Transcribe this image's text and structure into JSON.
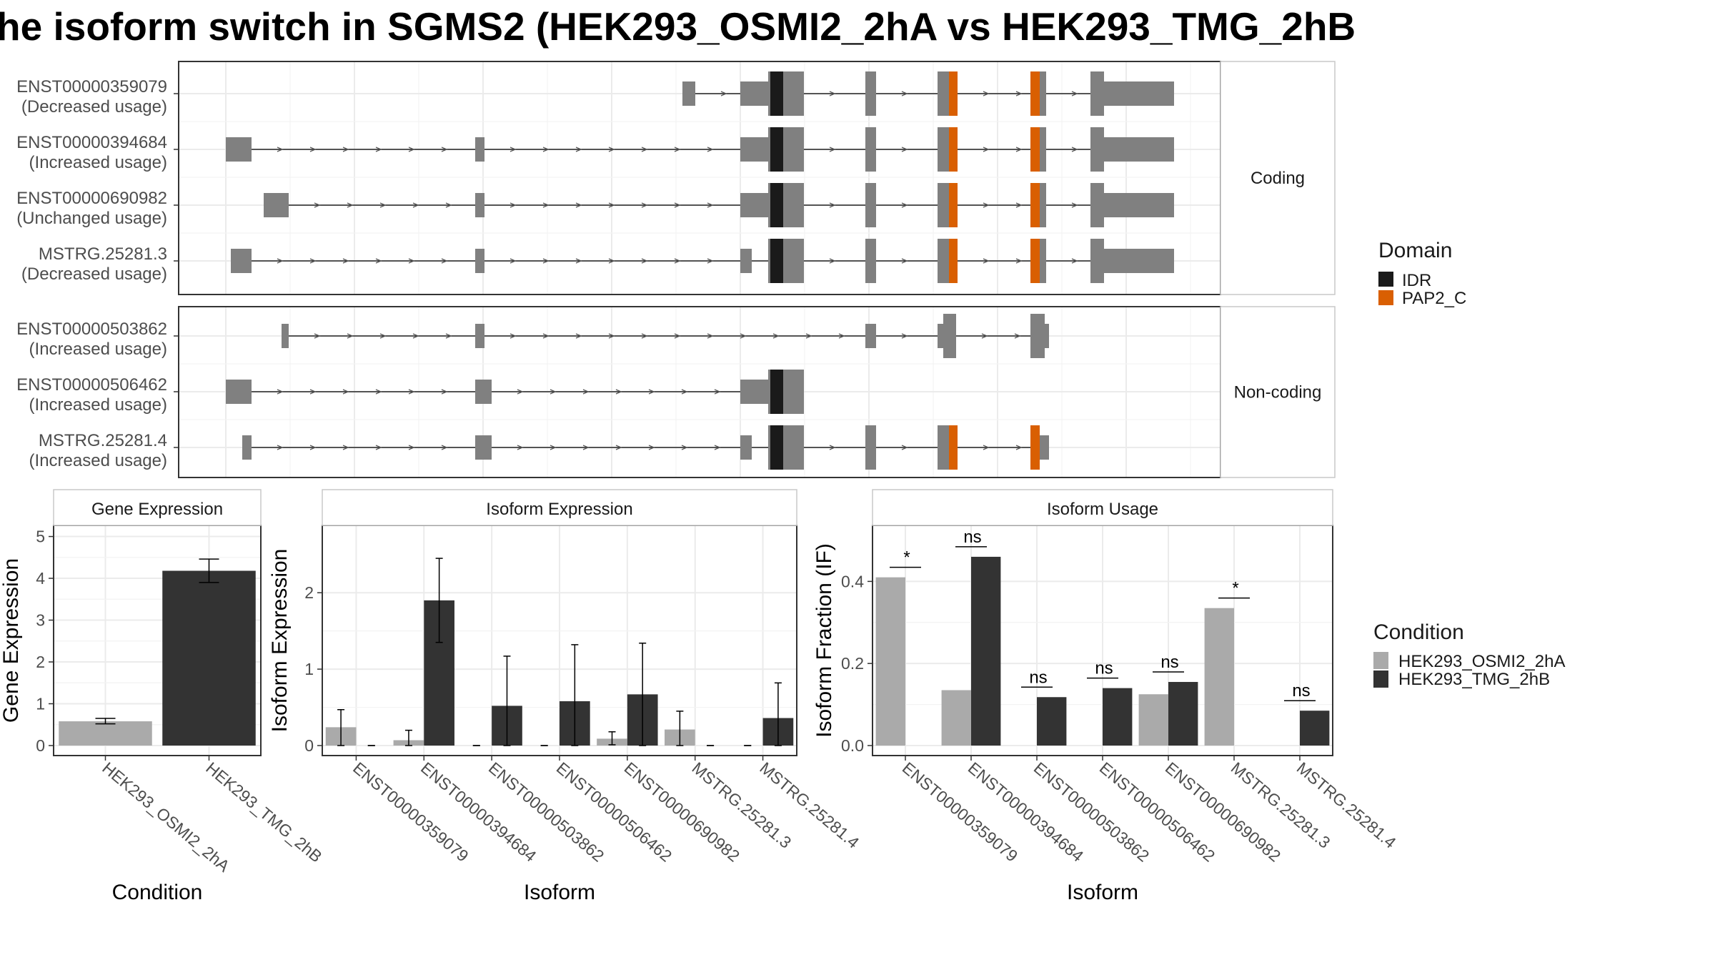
{
  "title": "he isoform switch in SGMS2 (HEK293_OSMI2_2hA vs HEK293_TMG_2hB",
  "colors": {
    "exon": "#808080",
    "idr": "#1a1a1a",
    "pap2c": "#d95f02",
    "cond_a": "#aaaaaa",
    "cond_b": "#333333",
    "grid": "#ebebeb",
    "frame": "#333333"
  },
  "structure_panels": [
    {
      "strip_label": "Coding",
      "transcripts": [
        {
          "id": "ENST00000359079",
          "usage": "(Decreased usage)"
        },
        {
          "id": "ENST00000394684",
          "usage": "(Increased usage)"
        },
        {
          "id": "ENST00000690982",
          "usage": "(Unchanged usage)"
        },
        {
          "id": "MSTRG.25281.3",
          "usage": "(Decreased usage)"
        }
      ]
    },
    {
      "strip_label": "Non-coding",
      "transcripts": [
        {
          "id": "ENST00000503862",
          "usage": "(Increased usage)"
        },
        {
          "id": "ENST00000506462",
          "usage": "(Increased usage)"
        },
        {
          "id": "MSTRG.25281.4",
          "usage": "(Increased usage)"
        }
      ]
    }
  ],
  "domain_legend": {
    "title": "Domain",
    "items": [
      {
        "label": "IDR",
        "color": "#1a1a1a"
      },
      {
        "label": "PAP2_C",
        "color": "#d95f02"
      }
    ]
  },
  "condition_legend": {
    "title": "Condition",
    "items": [
      {
        "label": "HEK293_OSMI2_2hA",
        "color": "#aaaaaa"
      },
      {
        "label": "HEK293_TMG_2hB",
        "color": "#333333"
      }
    ]
  },
  "chart_data": [
    {
      "type": "bar",
      "title": "Gene Expression",
      "xlabel": "Condition",
      "ylabel": "Gene Expression",
      "ylim": [
        0,
        5.3
      ],
      "yticks": [
        0,
        1,
        2,
        3,
        4,
        5
      ],
      "categories": [
        "HEK293_OSMI2_2hA",
        "HEK293_TMG_2hB"
      ],
      "values": [
        0.58,
        4.18
      ],
      "error_low": [
        0.52,
        3.9
      ],
      "error_high": [
        0.65,
        4.46
      ],
      "colors": [
        "#aaaaaa",
        "#333333"
      ]
    },
    {
      "type": "bar",
      "title": "Isoform Expression",
      "xlabel": "Isoform",
      "ylabel": "Isoform Expression",
      "ylim": [
        0,
        2.9
      ],
      "yticks": [
        0,
        1,
        2
      ],
      "categories": [
        "ENST00000359079",
        "ENST00000394684",
        "ENST00000503862",
        "ENST00000506462",
        "ENST00000690982",
        "MSTRG.25281.3",
        "MSTRG.25281.4"
      ],
      "series": [
        {
          "name": "HEK293_OSMI2_2hA",
          "values": [
            0.24,
            0.07,
            0.0,
            0.0,
            0.09,
            0.21,
            0.0
          ],
          "error_low": [
            0.0,
            0.0,
            0.0,
            0.0,
            0.01,
            0.0,
            0.0
          ],
          "error_high": [
            0.47,
            0.2,
            0.0,
            0.0,
            0.18,
            0.45,
            0.0
          ]
        },
        {
          "name": "HEK293_TMG_2hB",
          "values": [
            0.0,
            1.9,
            0.52,
            0.58,
            0.67,
            0.0,
            0.36
          ],
          "error_low": [
            0.0,
            1.35,
            0.0,
            0.0,
            0.0,
            0.0,
            0.0
          ],
          "error_high": [
            0.0,
            2.45,
            1.17,
            1.32,
            1.34,
            0.0,
            0.82
          ]
        }
      ]
    },
    {
      "type": "bar",
      "title": "Isoform Usage",
      "xlabel": "Isoform",
      "ylabel": "Isoform Fraction (IF)",
      "ylim": [
        0,
        0.54
      ],
      "yticks": [
        0.0,
        0.2,
        0.4
      ],
      "ytick_labels": [
        "0.0",
        "0.2",
        "0.4"
      ],
      "categories": [
        "ENST00000359079",
        "ENST00000394684",
        "ENST00000503862",
        "ENST00000506462",
        "ENST00000690982",
        "MSTRG.25281.3",
        "MSTRG.25281.4"
      ],
      "series": [
        {
          "name": "HEK293_OSMI2_2hA",
          "values": [
            0.41,
            0.135,
            0.0,
            0.0,
            0.125,
            0.335,
            0.0
          ]
        },
        {
          "name": "HEK293_TMG_2hB",
          "values": [
            0.0,
            0.46,
            0.118,
            0.14,
            0.155,
            0.0,
            0.085
          ]
        }
      ],
      "significance": [
        "*",
        "ns",
        "ns",
        "ns",
        "ns",
        "*",
        "ns"
      ]
    }
  ]
}
